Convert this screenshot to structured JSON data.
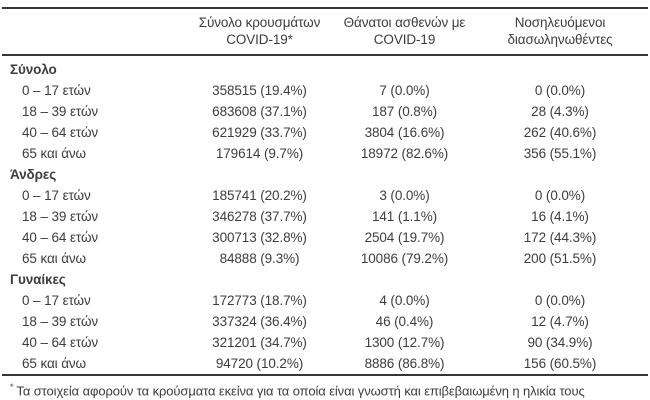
{
  "colors": {
    "text": "#3d3d3d",
    "rule": "#363636",
    "background": "#ffffff"
  },
  "table": {
    "columns": [
      {
        "line1": "Σύνολο κρουσμάτων",
        "line2": "COVID-19*"
      },
      {
        "line1": "Θάνατοι ασθενών με",
        "line2": "COVID-19"
      },
      {
        "line1": "Νοσηλευόμενοι",
        "line2": "διασωληνωθέντες"
      }
    ],
    "sections": [
      {
        "label": "Σύνολο",
        "rows": [
          {
            "label": "0 – 17 ετών",
            "cases": "358515 (19.4%)",
            "deaths": "7 (0.0%)",
            "intubated": "0 (0.0%)"
          },
          {
            "label": "18 – 39 ετών",
            "cases": "683608 (37.1%)",
            "deaths": "187 (0.8%)",
            "intubated": "28 (4.3%)"
          },
          {
            "label": "40 – 64 ετών",
            "cases": "621929 (33.7%)",
            "deaths": "3804 (16.6%)",
            "intubated": "262 (40.6%)"
          },
          {
            "label": "65 και άνω",
            "cases": "179614 (9.7%)",
            "deaths": "18972 (82.6%)",
            "intubated": "356 (55.1%)"
          }
        ]
      },
      {
        "label": "Άνδρες",
        "rows": [
          {
            "label": "0 – 17 ετών",
            "cases": "185741 (20.2%)",
            "deaths": "3 (0.0%)",
            "intubated": "0 (0.0%)"
          },
          {
            "label": "18 – 39 ετών",
            "cases": "346278 (37.7%)",
            "deaths": "141 (1.1%)",
            "intubated": "16 (4.1%)"
          },
          {
            "label": "40 – 64 ετών",
            "cases": "300713 (32.8%)",
            "deaths": "2504 (19.7%)",
            "intubated": "172 (44.3%)"
          },
          {
            "label": "65 και άνω",
            "cases": "84888 (9.3%)",
            "deaths": "10086 (79.2%)",
            "intubated": "200 (51.5%)"
          }
        ]
      },
      {
        "label": "Γυναίκες",
        "rows": [
          {
            "label": "0 – 17 ετών",
            "cases": "172773 (18.7%)",
            "deaths": "4 (0.0%)",
            "intubated": "0 (0.0%)"
          },
          {
            "label": "18 – 39 ετών",
            "cases": "337324 (36.4%)",
            "deaths": "46 (0.4%)",
            "intubated": "12 (4.7%)"
          },
          {
            "label": "40 – 64 ετών",
            "cases": "321201 (34.7%)",
            "deaths": "1300 (12.7%)",
            "intubated": "90 (34.9%)"
          },
          {
            "label": "65 και άνω",
            "cases": "94720 (10.2%)",
            "deaths": "8886 (86.8%)",
            "intubated": "156 (60.5%)"
          }
        ]
      }
    ],
    "footnote": {
      "marker": "*",
      "text": "Τα στοιχεία αφορούν τα κρούσματα εκείνα για τα οποία είναι γνωστή και επιβεβαιωμένη η ηλικία τους"
    }
  }
}
